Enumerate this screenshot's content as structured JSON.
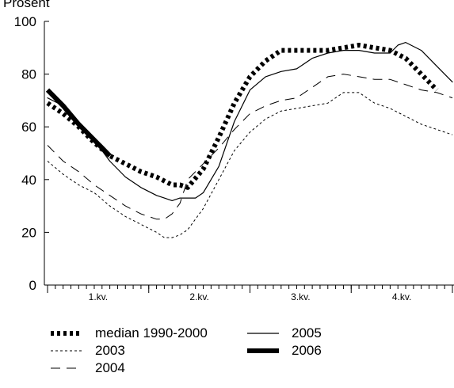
{
  "chart_data": {
    "type": "line",
    "title": "",
    "ylabel": "Prosent",
    "xlabel": "",
    "ylim": [
      0,
      100
    ],
    "yticks": [
      0,
      20,
      40,
      60,
      80,
      100
    ],
    "xlim": [
      1,
      53
    ],
    "quarter_labels": [
      "1.kv.",
      "2.kv.",
      "3.kv.",
      "4.kv."
    ],
    "grid": false,
    "legend_position": "bottom",
    "series": [
      {
        "name": "median 1990-2000",
        "style": "dotted-heavy",
        "x": [
          1,
          3,
          5,
          7,
          9,
          11,
          13,
          15,
          17,
          18,
          19,
          21,
          23,
          25,
          27,
          29,
          31,
          33,
          35,
          37,
          39,
          41,
          43,
          45,
          47,
          49,
          51
        ],
        "y": [
          69,
          65,
          60,
          54,
          49,
          46,
          43,
          41,
          38,
          38,
          37,
          44,
          56,
          69,
          79,
          85,
          89,
          89,
          89,
          89,
          90,
          91,
          90,
          89,
          86,
          80,
          74
        ]
      },
      {
        "name": "2003",
        "style": "short-dash",
        "x": [
          1,
          3,
          5,
          7,
          9,
          11,
          13,
          15,
          16,
          17,
          18,
          19,
          21,
          23,
          25,
          27,
          29,
          31,
          33,
          35,
          37,
          39,
          41,
          43,
          45,
          47,
          49,
          51,
          53
        ],
        "y": [
          47,
          42,
          38,
          35,
          30,
          26,
          23,
          20,
          18,
          18,
          19,
          21,
          29,
          40,
          51,
          58,
          63,
          66,
          67,
          68,
          69,
          73,
          73,
          69,
          67,
          64,
          61,
          59,
          57
        ]
      },
      {
        "name": "2004",
        "style": "long-dash",
        "x": [
          1,
          3,
          5,
          7,
          9,
          11,
          13,
          15,
          16,
          17,
          18,
          19,
          21,
          23,
          25,
          27,
          29,
          31,
          33,
          35,
          37,
          39,
          41,
          43,
          45,
          47,
          49,
          51,
          53
        ],
        "y": [
          53,
          47,
          43,
          38,
          34,
          30,
          27,
          25,
          25,
          27,
          31,
          40,
          46,
          52,
          59,
          65,
          68,
          70,
          71,
          75,
          79,
          80,
          79,
          78,
          78,
          76,
          74,
          73,
          71
        ]
      },
      {
        "name": "2005",
        "style": "thin-solid",
        "x": [
          1,
          3,
          5,
          7,
          9,
          11,
          13,
          15,
          16,
          17,
          18,
          19,
          20,
          21,
          23,
          25,
          27,
          29,
          31,
          33,
          35,
          37,
          39,
          41,
          43,
          45,
          46,
          47,
          49,
          51,
          53
        ],
        "y": [
          71,
          68,
          62,
          55,
          47,
          41,
          37,
          34,
          33,
          32,
          33,
          33,
          33,
          35,
          45,
          62,
          74,
          79,
          81,
          82,
          86,
          88,
          89,
          89,
          88,
          88,
          91,
          92,
          89,
          83,
          77
        ]
      },
      {
        "name": "2006",
        "style": "thick-solid",
        "x": [
          1,
          3,
          5,
          7,
          9
        ],
        "y": [
          74,
          68,
          61,
          55,
          49
        ]
      }
    ]
  }
}
